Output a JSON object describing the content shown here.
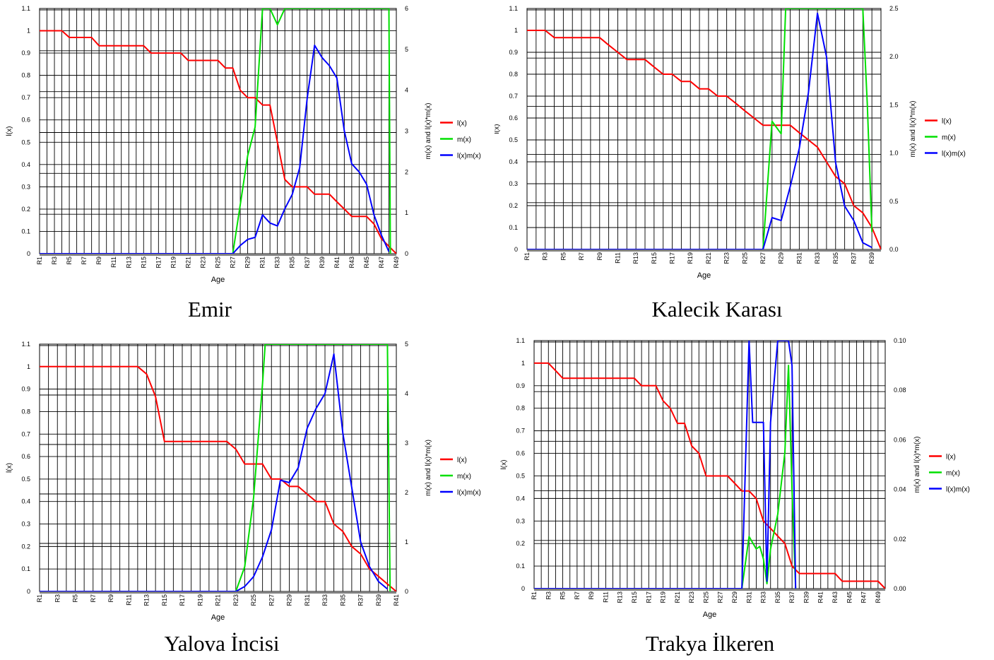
{
  "legend": [
    "l(x)",
    "m(x)",
    "l(x)m(x)"
  ],
  "colors": {
    "lx": "#ff0000",
    "mx": "#00e000",
    "lxmx": "#0000ff",
    "grid": "#000000"
  },
  "chart_data": [
    {
      "type": "line",
      "title": "Emir",
      "xlabel": "Age",
      "ylabel": "l(x)",
      "y2label": "m(x) and l(x)*m(x)",
      "ylim": [
        0,
        1.1
      ],
      "y2lim": [
        0,
        6
      ],
      "yticks": [
        "0",
        "0.1",
        "0.2",
        "0.3",
        "0.4",
        "0.5",
        "0.6",
        "0.7",
        "0.8",
        "0.9",
        "1",
        "1.1"
      ],
      "y2ticks": [
        "0",
        "1",
        "2",
        "3",
        "4",
        "5",
        "6"
      ],
      "xtick_labels": [
        "R1",
        "R3",
        "R5",
        "R7",
        "R9",
        "R11",
        "R13",
        "R15",
        "R17",
        "R19",
        "R21",
        "R23",
        "R25",
        "R27",
        "R29",
        "R31",
        "R33",
        "R35",
        "R37",
        "R39",
        "R41",
        "R43",
        "R45",
        "R47",
        "R49"
      ],
      "series": [
        {
          "name": "l(x)",
          "axis": "left",
          "x": [
            1,
            2,
            3,
            4,
            5,
            6,
            7,
            8,
            9,
            10,
            11,
            12,
            13,
            14,
            15,
            16,
            17,
            18,
            19,
            20,
            21,
            22,
            23,
            24,
            25,
            26,
            27,
            28,
            29,
            30,
            31,
            32,
            33,
            34,
            35,
            36,
            37,
            38,
            39,
            40,
            41,
            42,
            43,
            44,
            45,
            46,
            47,
            48,
            49
          ],
          "values": [
            1,
            1,
            1,
            1,
            0.97,
            0.97,
            0.97,
            0.97,
            0.933,
            0.933,
            0.933,
            0.933,
            0.933,
            0.933,
            0.933,
            0.9,
            0.9,
            0.9,
            0.9,
            0.9,
            0.867,
            0.867,
            0.867,
            0.867,
            0.867,
            0.833,
            0.833,
            0.733,
            0.7,
            0.7,
            0.667,
            0.667,
            0.5,
            0.333,
            0.3,
            0.3,
            0.3,
            0.267,
            0.267,
            0.267,
            0.233,
            0.2,
            0.167,
            0.167,
            0.167,
            0.133,
            0.067,
            0.033,
            0
          ]
        },
        {
          "name": "m(x)",
          "axis": "right",
          "x": [
            1,
            27,
            28,
            29,
            30,
            31,
            31.5,
            32,
            33,
            34,
            48,
            48.2
          ],
          "values": [
            0,
            0,
            1.2,
            2.4,
            3.1,
            6.2,
            6.8,
            6.2,
            5.6,
            6.2,
            6.2,
            0
          ]
        },
        {
          "name": "l(x)m(x)",
          "axis": "right",
          "x": [
            1,
            27,
            28,
            29,
            30,
            31,
            32,
            33,
            34,
            35,
            36,
            37,
            38,
            39,
            40,
            41,
            42,
            43,
            44,
            45,
            46,
            47,
            48
          ],
          "values": [
            0,
            0,
            0.2,
            0.35,
            0.4,
            0.95,
            0.75,
            0.68,
            1.1,
            1.45,
            2.1,
            3.8,
            5.1,
            4.8,
            4.6,
            4.3,
            3.0,
            2.2,
            2.0,
            1.7,
            0.95,
            0.45,
            0.05
          ]
        }
      ]
    },
    {
      "type": "line",
      "title": "Kalecik Karası",
      "xlabel": "Age",
      "ylabel": "l(x)",
      "y2label": "m(x) and l(x)*m(x)",
      "ylim": [
        0,
        1.1
      ],
      "y2lim": [
        0,
        2.5
      ],
      "yticks": [
        "0",
        "0.1",
        "0.2",
        "0.3",
        "0.4",
        "0.5",
        "0.6",
        "0.7",
        "0.8",
        "0.9",
        "1",
        "1.1"
      ],
      "y2ticks": [
        "0.0",
        "0.5",
        "1.0",
        "1.5",
        "2.0",
        "2.5"
      ],
      "xtick_labels": [
        "R1",
        "R3",
        "R5",
        "R7",
        "R9",
        "R11",
        "R13",
        "R15",
        "R17",
        "R19",
        "R21",
        "R23",
        "R25",
        "R27",
        "R29",
        "R31",
        "R33",
        "R35",
        "R37",
        "R39"
      ],
      "series": [
        {
          "name": "l(x)",
          "axis": "left",
          "x": [
            1,
            2,
            3,
            4,
            5,
            6,
            7,
            8,
            9,
            10,
            11,
            12,
            13,
            14,
            15,
            16,
            17,
            18,
            19,
            20,
            21,
            22,
            23,
            24,
            25,
            26,
            27,
            28,
            29,
            30,
            31,
            32,
            33,
            34,
            35,
            36,
            37,
            38,
            39,
            40
          ],
          "values": [
            1,
            1,
            1,
            0.967,
            0.967,
            0.967,
            0.967,
            0.967,
            0.967,
            0.933,
            0.9,
            0.867,
            0.867,
            0.867,
            0.833,
            0.8,
            0.8,
            0.767,
            0.767,
            0.733,
            0.733,
            0.7,
            0.7,
            0.667,
            0.633,
            0.6,
            0.567,
            0.567,
            0.567,
            0.567,
            0.533,
            0.5,
            0.467,
            0.4,
            0.333,
            0.3,
            0.2,
            0.167,
            0.1,
            0
          ]
        },
        {
          "name": "m(x)",
          "axis": "right",
          "x": [
            1,
            27,
            28,
            29,
            29.5,
            30,
            38,
            38.5,
            39
          ],
          "values": [
            0,
            0,
            1.33,
            1.2,
            2.6,
            2.6,
            2.6,
            1.5,
            0.18
          ]
        },
        {
          "name": "l(x)m(x)",
          "axis": "right",
          "x": [
            1,
            27,
            28,
            29,
            30,
            31,
            32,
            33,
            34,
            35,
            36,
            37,
            38,
            39
          ],
          "values": [
            0,
            0,
            0.33,
            0.3,
            0.65,
            1.05,
            1.62,
            2.45,
            2.0,
            0.9,
            0.45,
            0.3,
            0.07,
            0.02
          ]
        }
      ]
    },
    {
      "type": "line",
      "title": "Yalova İncisi",
      "xlabel": "Age",
      "ylabel": "l(x)",
      "y2label": "m(x) and l(x)*m(x)",
      "ylim": [
        0,
        1.1
      ],
      "y2lim": [
        0,
        5
      ],
      "yticks": [
        "0",
        "0.1",
        "0.2",
        "0.3",
        "0.4",
        "0.5",
        "0.6",
        "0.7",
        "0.8",
        "0.9",
        "1",
        "1.1"
      ],
      "y2ticks": [
        "0",
        "1",
        "2",
        "3",
        "4",
        "5"
      ],
      "xtick_labels": [
        "R1",
        "R3",
        "R5",
        "R7",
        "R9",
        "R11",
        "R13",
        "R15",
        "R17",
        "R19",
        "R21",
        "R23",
        "R25",
        "R27",
        "R29",
        "R31",
        "R33",
        "R35",
        "R37",
        "R39",
        "R41"
      ],
      "series": [
        {
          "name": "l(x)",
          "axis": "left",
          "x": [
            1,
            2,
            3,
            4,
            5,
            6,
            7,
            8,
            9,
            10,
            11,
            12,
            13,
            14,
            15,
            16,
            17,
            18,
            19,
            20,
            21,
            22,
            23,
            24,
            25,
            26,
            27,
            28,
            29,
            30,
            31,
            32,
            33,
            34,
            35,
            36,
            37,
            38,
            39,
            40,
            41
          ],
          "values": [
            1,
            1,
            1,
            1,
            1,
            1,
            1,
            1,
            1,
            1,
            1,
            1,
            0.967,
            0.867,
            0.667,
            0.667,
            0.667,
            0.667,
            0.667,
            0.667,
            0.667,
            0.667,
            0.633,
            0.567,
            0.567,
            0.567,
            0.5,
            0.5,
            0.467,
            0.467,
            0.433,
            0.4,
            0.4,
            0.3,
            0.267,
            0.2,
            0.167,
            0.1,
            0.067,
            0.033,
            0
          ]
        },
        {
          "name": "m(x)",
          "axis": "right",
          "x": [
            1,
            23,
            24,
            25,
            26,
            26.3,
            40,
            40.3
          ],
          "values": [
            0,
            0,
            0.5,
            1.9,
            4.2,
            5.2,
            5.2,
            0
          ]
        },
        {
          "name": "l(x)m(x)",
          "axis": "right",
          "x": [
            1,
            23,
            24,
            25,
            26,
            27,
            28,
            29,
            30,
            31,
            32,
            33,
            34,
            35,
            36,
            37,
            38,
            39,
            40
          ],
          "values": [
            0,
            0,
            0.1,
            0.3,
            0.7,
            1.25,
            2.25,
            2.2,
            2.5,
            3.3,
            3.7,
            4.0,
            4.8,
            3.2,
            2.1,
            1.0,
            0.5,
            0.2,
            0.05
          ]
        }
      ]
    },
    {
      "type": "line",
      "title": "Trakya İlkeren",
      "xlabel": "Age",
      "ylabel": "l(x)",
      "y2label": "m(x) and l(x)*m(x)",
      "ylim": [
        0,
        1.1
      ],
      "y2lim": [
        0,
        0.1
      ],
      "yticks": [
        "0",
        "0.1",
        "0.2",
        "0.3",
        "0.4",
        "0.5",
        "0.6",
        "0.7",
        "0.8",
        "0.9",
        "1",
        "1.1"
      ],
      "y2ticks": [
        "0.00",
        "0.02",
        "0.04",
        "0.06",
        "0.08",
        "0.10"
      ],
      "xtick_labels": [
        "R1",
        "R3",
        "R5",
        "R7",
        "R9",
        "R11",
        "R13",
        "R15",
        "R17",
        "R19",
        "R21",
        "R23",
        "R25",
        "R27",
        "R29",
        "R31",
        "R33",
        "R35",
        "R37",
        "R39",
        "R41",
        "R43",
        "R45",
        "R47",
        "R49"
      ],
      "series": [
        {
          "name": "l(x)",
          "axis": "left",
          "x": [
            1,
            2,
            3,
            4,
            5,
            6,
            7,
            8,
            9,
            10,
            11,
            12,
            13,
            14,
            15,
            16,
            17,
            18,
            19,
            20,
            21,
            22,
            23,
            24,
            25,
            26,
            27,
            28,
            29,
            30,
            31,
            32,
            33,
            34,
            35,
            36,
            37,
            38,
            39,
            40,
            41,
            42,
            43,
            44,
            45,
            46,
            47,
            48,
            49,
            50
          ],
          "values": [
            1,
            1,
            1,
            0.967,
            0.933,
            0.933,
            0.933,
            0.933,
            0.933,
            0.933,
            0.933,
            0.933,
            0.933,
            0.933,
            0.933,
            0.9,
            0.9,
            0.9,
            0.833,
            0.8,
            0.733,
            0.733,
            0.633,
            0.6,
            0.5,
            0.5,
            0.5,
            0.5,
            0.467,
            0.433,
            0.433,
            0.4,
            0.3,
            0.267,
            0.233,
            0.2,
            0.1,
            0.067,
            0.067,
            0.067,
            0.067,
            0.067,
            0.067,
            0.033,
            0.033,
            0.033,
            0.033,
            0.033,
            0.033,
            0
          ]
        },
        {
          "name": "m(x)",
          "axis": "right",
          "x": [
            1,
            30,
            31,
            32,
            32.5,
            33,
            33.5,
            34,
            35,
            36,
            36.5,
            37,
            37.5
          ],
          "values": [
            0,
            0,
            0.021,
            0.016,
            0.017,
            0.012,
            0.002,
            0.016,
            0.03,
            0.055,
            0.09,
            0.04,
            0
          ]
        },
        {
          "name": "l(x)m(x)",
          "axis": "right",
          "x": [
            1,
            30,
            31,
            31.5,
            32,
            33,
            33.5,
            34,
            35,
            36,
            36.5,
            37,
            37.5
          ],
          "values": [
            0,
            0,
            0.102,
            0.067,
            0.067,
            0.067,
            0.003,
            0.067,
            0.1,
            0.102,
            0.102,
            0.09,
            0
          ]
        }
      ]
    }
  ]
}
